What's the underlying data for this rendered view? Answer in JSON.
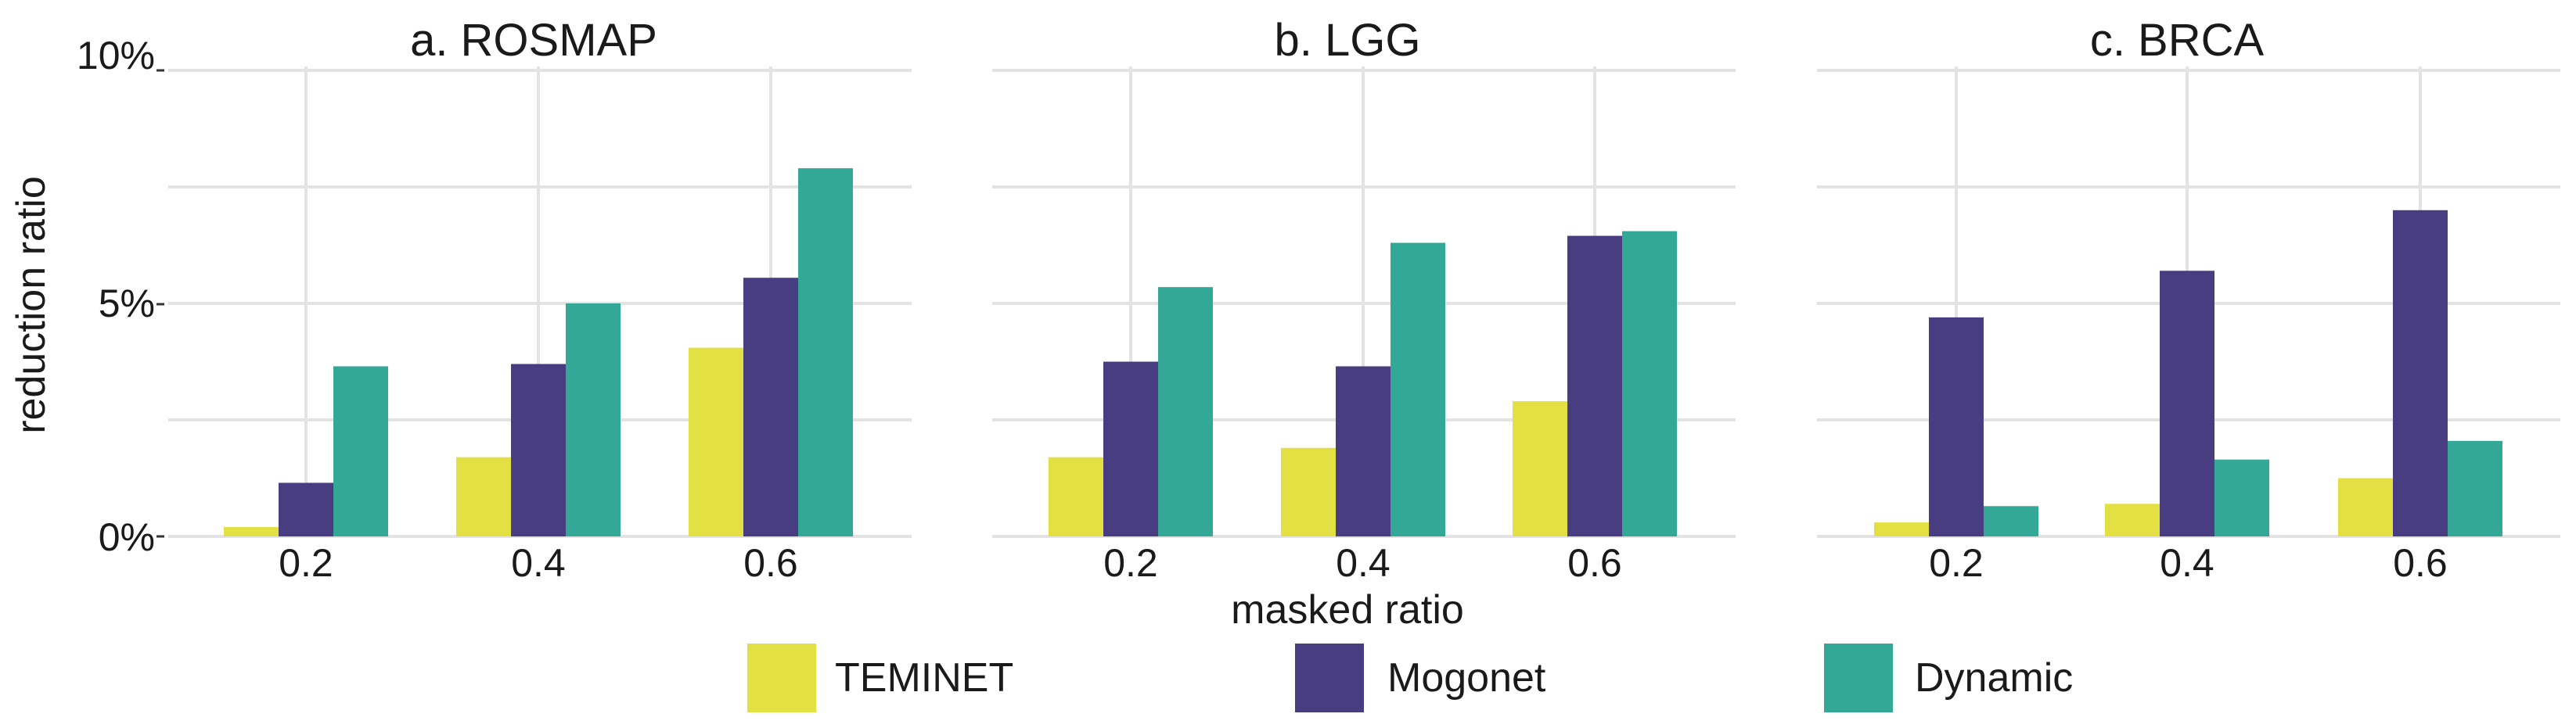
{
  "colors": {
    "TEMINET": "#e3e044",
    "Mogonet": "#483d80",
    "Dynamic": "#34a897",
    "grid": "#e3e3e3",
    "text": "#1a1a1a"
  },
  "chart_data": {
    "type": "bar",
    "xlabel": "masked ratio",
    "ylabel": "reduction ratio",
    "ylim": [
      0,
      10
    ],
    "y_ticks": [
      {
        "value": 0,
        "label": "0%"
      },
      {
        "value": 5,
        "label": "5%"
      },
      {
        "value": 10,
        "label": "10%"
      }
    ],
    "categories": [
      "0.2",
      "0.4",
      "0.6"
    ],
    "legend": [
      "TEMINET",
      "Mogonet",
      "Dynamic"
    ],
    "legend_position": "bottom",
    "panels": [
      {
        "title": "a. ROSMAP",
        "series": [
          {
            "name": "TEMINET",
            "values": [
              0.2,
              1.7,
              4.05
            ]
          },
          {
            "name": "Mogonet",
            "values": [
              1.15,
              3.7,
              5.55
            ]
          },
          {
            "name": "Dynamic",
            "values": [
              3.65,
              5.0,
              7.9
            ]
          }
        ]
      },
      {
        "title": "b. LGG",
        "series": [
          {
            "name": "TEMINET",
            "values": [
              1.7,
              1.9,
              2.9
            ]
          },
          {
            "name": "Mogonet",
            "values": [
              3.75,
              3.65,
              6.45
            ]
          },
          {
            "name": "Dynamic",
            "values": [
              5.35,
              6.3,
              6.55
            ]
          }
        ]
      },
      {
        "title": "c. BRCA",
        "series": [
          {
            "name": "TEMINET",
            "values": [
              0.3,
              0.7,
              1.25
            ]
          },
          {
            "name": "Mogonet",
            "values": [
              4.7,
              5.7,
              7.0
            ]
          },
          {
            "name": "Dynamic",
            "values": [
              0.65,
              1.65,
              2.05
            ]
          }
        ]
      }
    ]
  }
}
